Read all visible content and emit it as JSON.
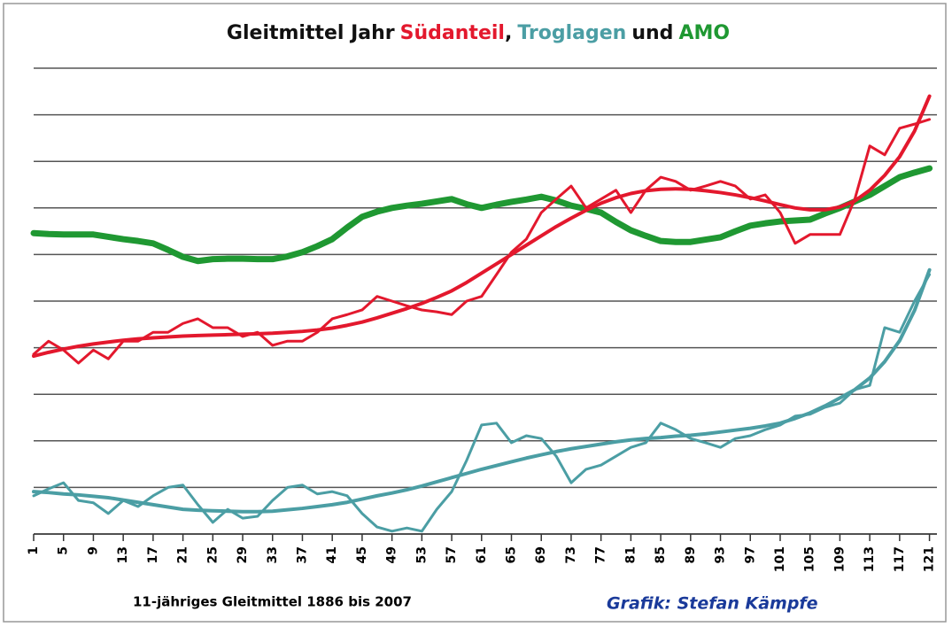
{
  "chart_data": {
    "type": "line",
    "title": {
      "prefix": "Gleitmittel Jahr",
      "joins": [
        ",",
        "und"
      ]
    },
    "x": [
      1,
      3,
      5,
      7,
      9,
      11,
      13,
      15,
      17,
      19,
      21,
      23,
      25,
      27,
      29,
      31,
      33,
      35,
      37,
      39,
      41,
      43,
      45,
      47,
      49,
      51,
      53,
      55,
      57,
      59,
      61,
      63,
      65,
      67,
      69,
      71,
      73,
      75,
      77,
      79,
      81,
      83,
      85,
      87,
      89,
      91,
      93,
      95,
      97,
      99,
      101,
      103,
      105,
      107,
      109,
      111,
      113,
      115,
      117,
      119,
      121
    ],
    "xlim": [
      1,
      122
    ],
    "xticks": [
      1,
      5,
      9,
      13,
      17,
      21,
      25,
      29,
      33,
      37,
      41,
      45,
      49,
      53,
      57,
      61,
      65,
      69,
      73,
      77,
      81,
      85,
      89,
      93,
      97,
      101,
      105,
      109,
      113,
      117,
      121
    ],
    "ylim": [
      0,
      10
    ],
    "yticks": [
      0,
      1,
      2,
      3,
      4,
      5,
      6,
      7,
      8,
      9,
      10
    ],
    "grid": true,
    "series": [
      {
        "name": "Südanteil",
        "color": "#e3182d",
        "width": 3,
        "values": [
          3.86,
          4.14,
          3.95,
          3.67,
          3.95,
          3.76,
          4.14,
          4.14,
          4.33,
          4.33,
          4.52,
          4.62,
          4.43,
          4.43,
          4.24,
          4.33,
          4.05,
          4.14,
          4.14,
          4.33,
          4.62,
          4.71,
          4.81,
          5.1,
          5.0,
          4.9,
          4.81,
          4.77,
          4.71,
          5.0,
          5.1,
          5.57,
          6.05,
          6.33,
          6.9,
          7.19,
          7.47,
          7.0,
          7.19,
          7.38,
          6.9,
          7.38,
          7.66,
          7.57,
          7.38,
          7.47,
          7.57,
          7.47,
          7.19,
          7.28,
          6.9,
          6.24,
          6.43,
          6.43,
          6.43,
          7.19,
          8.33,
          8.14,
          8.71,
          8.8,
          8.9
        ]
      },
      {
        "color": "#e3182d",
        "width": 4,
        "values": [
          3.82,
          3.9,
          3.97,
          4.03,
          4.08,
          4.12,
          4.16,
          4.19,
          4.21,
          4.23,
          4.25,
          4.26,
          4.27,
          4.28,
          4.29,
          4.3,
          4.31,
          4.33,
          4.35,
          4.38,
          4.42,
          4.48,
          4.55,
          4.64,
          4.74,
          4.84,
          4.95,
          5.08,
          5.22,
          5.4,
          5.6,
          5.8,
          6.0,
          6.2,
          6.4,
          6.6,
          6.78,
          6.95,
          7.1,
          7.22,
          7.31,
          7.37,
          7.4,
          7.41,
          7.4,
          7.37,
          7.33,
          7.28,
          7.22,
          7.15,
          7.07,
          7.0,
          6.96,
          6.96,
          7.02,
          7.15,
          7.38,
          7.7,
          8.1,
          8.65,
          9.4
        ]
      },
      {
        "name": "Troglagen",
        "color": "#4b9ea4",
        "width": 3,
        "values": [
          0.82,
          0.97,
          1.1,
          0.72,
          0.67,
          0.44,
          0.72,
          0.59,
          0.82,
          1.0,
          1.05,
          0.63,
          0.25,
          0.53,
          0.34,
          0.38,
          0.72,
          1.0,
          1.05,
          0.86,
          0.91,
          0.82,
          0.44,
          0.15,
          0.06,
          0.13,
          0.06,
          0.53,
          0.91,
          1.58,
          2.34,
          2.38,
          1.96,
          2.11,
          2.05,
          1.67,
          1.1,
          1.39,
          1.48,
          1.67,
          1.86,
          1.96,
          2.38,
          2.24,
          2.05,
          1.96,
          1.86,
          2.05,
          2.11,
          2.24,
          2.34,
          2.53,
          2.57,
          2.72,
          2.81,
          3.1,
          3.19,
          4.43,
          4.33,
          5.0,
          5.57
        ]
      },
      {
        "color": "#4b9ea4",
        "width": 4,
        "values": [
          0.91,
          0.89,
          0.86,
          0.84,
          0.81,
          0.78,
          0.73,
          0.68,
          0.63,
          0.58,
          0.53,
          0.51,
          0.5,
          0.49,
          0.48,
          0.48,
          0.49,
          0.52,
          0.55,
          0.59,
          0.63,
          0.68,
          0.75,
          0.82,
          0.88,
          0.95,
          1.03,
          1.12,
          1.21,
          1.3,
          1.39,
          1.47,
          1.55,
          1.63,
          1.7,
          1.77,
          1.83,
          1.88,
          1.93,
          1.98,
          2.02,
          2.05,
          2.07,
          2.1,
          2.12,
          2.15,
          2.19,
          2.23,
          2.27,
          2.32,
          2.38,
          2.48,
          2.6,
          2.75,
          2.92,
          3.1,
          3.35,
          3.7,
          4.15,
          4.8,
          5.67
        ]
      },
      {
        "name": "AMO",
        "color": "#1f9832",
        "width": 7,
        "values": [
          6.46,
          6.44,
          6.43,
          6.43,
          6.43,
          6.38,
          6.33,
          6.29,
          6.24,
          6.1,
          5.95,
          5.86,
          5.9,
          5.91,
          5.91,
          5.9,
          5.9,
          5.96,
          6.05,
          6.18,
          6.33,
          6.58,
          6.81,
          6.92,
          7.0,
          7.05,
          7.09,
          7.14,
          7.19,
          7.08,
          7.0,
          7.07,
          7.13,
          7.18,
          7.24,
          7.16,
          7.05,
          6.98,
          6.9,
          6.7,
          6.52,
          6.4,
          6.29,
          6.27,
          6.27,
          6.32,
          6.37,
          6.5,
          6.62,
          6.67,
          6.71,
          6.73,
          6.75,
          6.88,
          7.0,
          7.14,
          7.28,
          7.47,
          7.66,
          7.76,
          7.85
        ]
      }
    ],
    "footnote": "11-jähriges Gleitmittel 1886 bis 2007",
    "credit": "Grafik: Stefan Kämpfe"
  }
}
